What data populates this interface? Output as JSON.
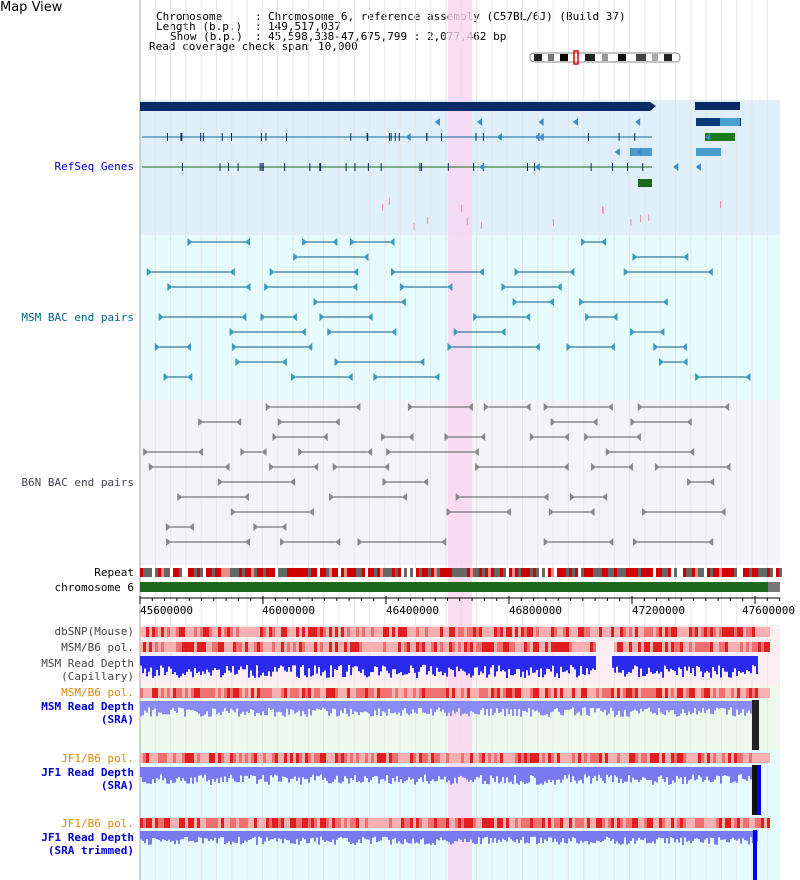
{
  "app": {
    "title": "Map View"
  },
  "header": {
    "chromosome_key": "Chromosome",
    "chromosome_val": "Chromosome 6, reference assembly (C57BL/6J) (Build 37)",
    "length_key": "Length (b.p.)",
    "length_val": "149,517,037",
    "show_key": "Show (b.p.)",
    "show_val": "45,598,338-47,675,799 : 2,077,462 bp",
    "span_key": "Read coverage check span",
    "span_val": "10,000"
  },
  "tracks": {
    "refseq": "RefSeq Genes",
    "msm_bac": "MSM BAC end pairs",
    "b6n_bac": "B6N BAC end pairs",
    "repeat": "Repeat",
    "chromosome": "chromosome 6"
  },
  "ruler": {
    "ticks": [
      "45600000",
      "46000000",
      "46400000",
      "46800000",
      "47200000",
      "47600000"
    ]
  },
  "lower_tracks": {
    "dbsnp": "dbSNP(Mouse)",
    "msm_pol": "MSM/B6 pol.",
    "msm_depth_cap": "MSM Read Depth",
    "msm_depth_cap2": "(Capillary)",
    "msm_pol2": "MSM/B6 pol.",
    "msm_depth_sra": "MSM Read Depth",
    "msm_depth_sra2": "(SRA)",
    "jf1_pol": "JF1/B6 pol.",
    "jf1_depth_sra": "JF1 Read Depth",
    "jf1_depth_sra2": "(SRA)",
    "jf1_pol2": "JF1/B6 pol.",
    "jf1_depth_trim": "JF1 Read Depth",
    "jf1_depth_trim2": "(SRA trimmed)"
  },
  "colors": {
    "refseq_bg": "#dff0fa",
    "msm_bg": "#e6fbfb",
    "b6n_bg": "#f4f4f8",
    "highlight": "#f9d4f0",
    "navy": "#0a2a66",
    "label_blue": "#0000cc",
    "label_orange": "#e08800",
    "label_teal": "#006688",
    "depth_blue": "#2a2aee",
    "depth_light": "#7a7af0",
    "chrom_green": "#1a6a1a"
  }
}
